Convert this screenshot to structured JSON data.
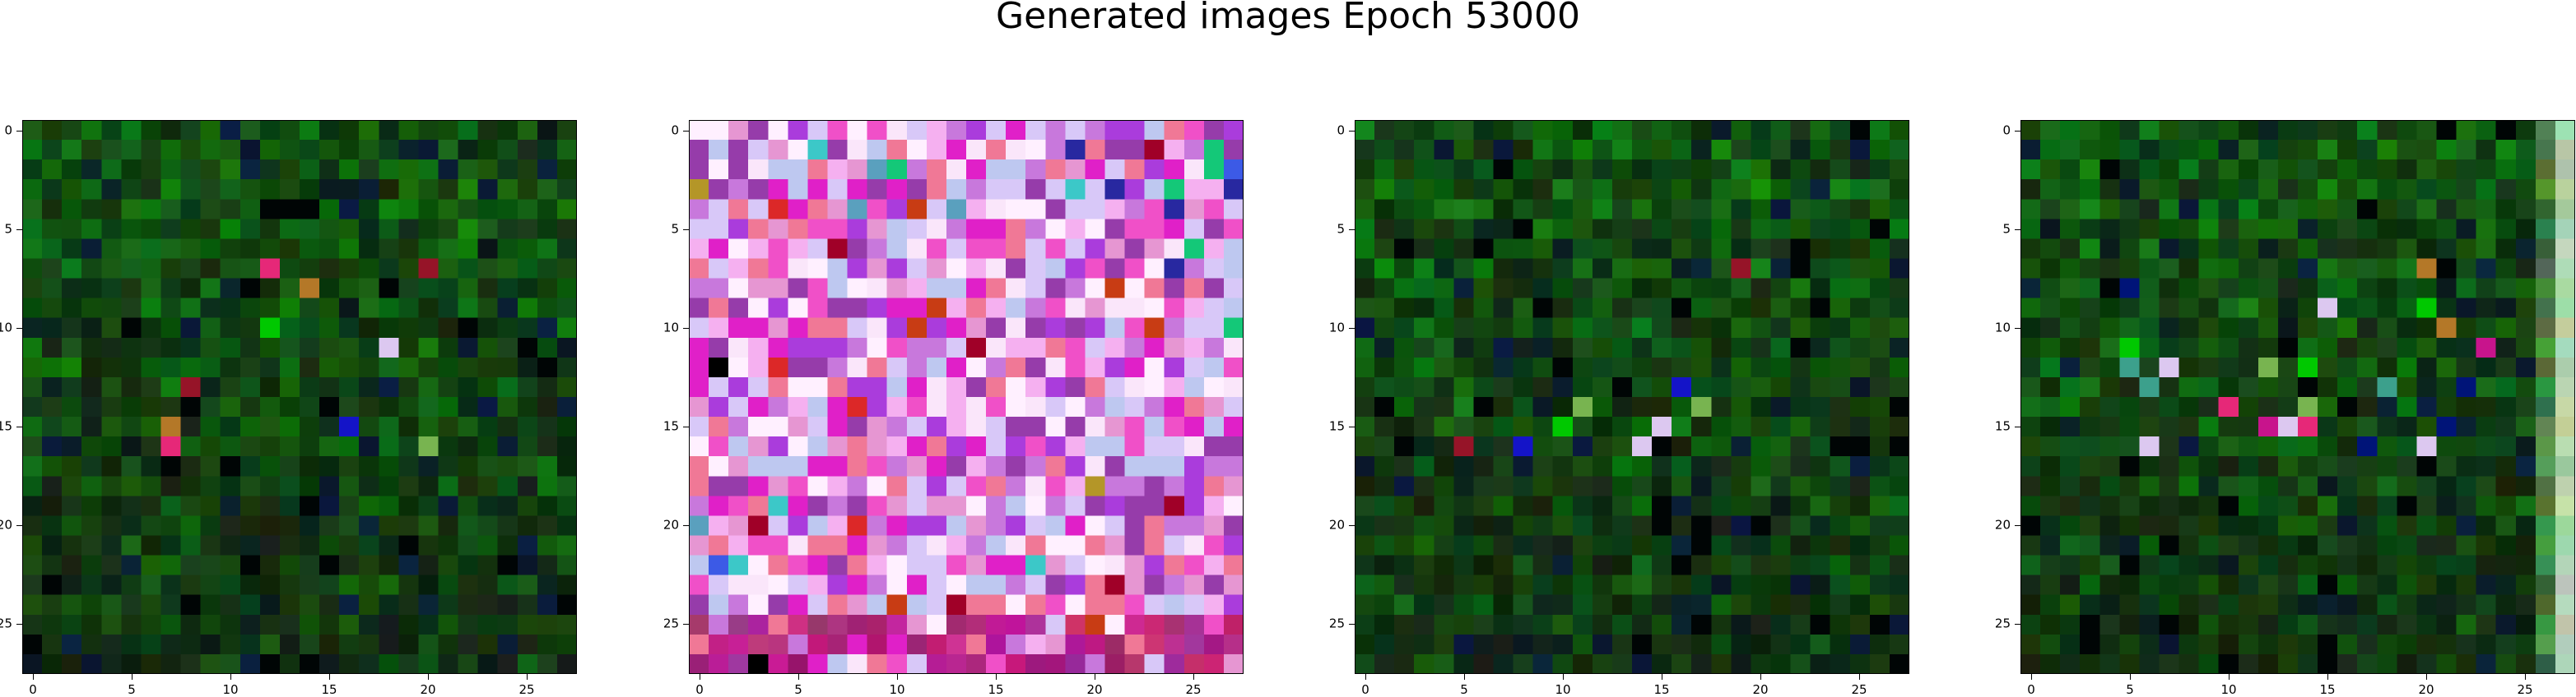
{
  "title": "Generated images Epoch 53000",
  "axis": {
    "x_ticks": [
      "0",
      "5",
      "10",
      "15",
      "20",
      "25"
    ],
    "y_ticks": [
      "0",
      "5",
      "10",
      "15",
      "20",
      "25"
    ]
  },
  "images": [
    {
      "palette": "dark-green",
      "grid_size": 28
    },
    {
      "palette": "pink-magenta-lavender",
      "grid_size": 28
    },
    {
      "palette": "dark-green",
      "grid_size": 28
    },
    {
      "palette": "dark-green-right-light-strip",
      "grid_size": 28
    }
  ],
  "colors": {
    "green": "#0a7a10",
    "dark_green": "#062a08",
    "pink": "#f5b0f0",
    "magenta": "#e020c8",
    "lavender": "#d8c8f8"
  }
}
